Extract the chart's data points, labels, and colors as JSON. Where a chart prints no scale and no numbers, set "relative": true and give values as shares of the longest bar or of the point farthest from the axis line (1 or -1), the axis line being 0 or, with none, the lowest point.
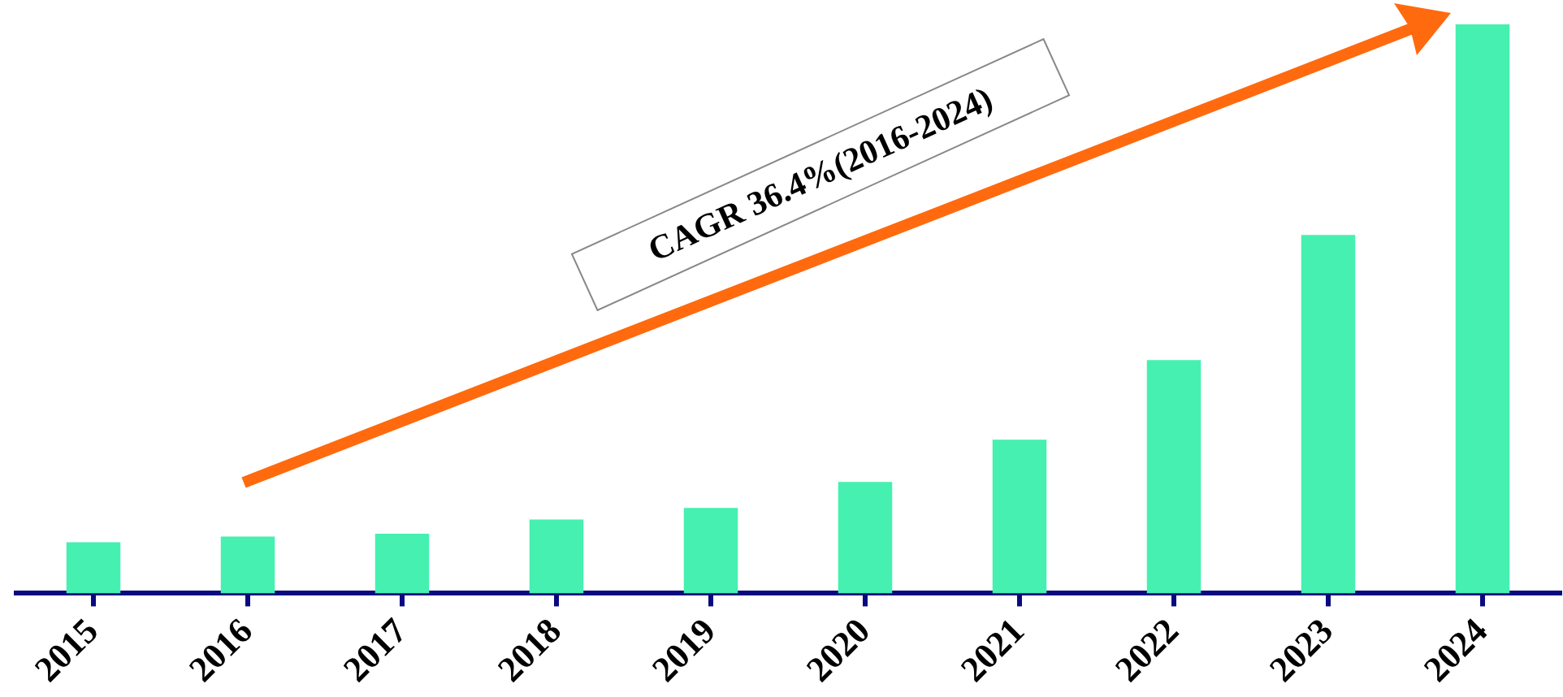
{
  "chart_data": {
    "type": "bar",
    "relative": true,
    "categories": [
      "2015",
      "2016",
      "2017",
      "2018",
      "2019",
      "2020",
      "2021",
      "2022",
      "2023",
      "2024"
    ],
    "values": [
      0.09,
      0.1,
      0.105,
      0.13,
      0.15,
      0.196,
      0.27,
      0.41,
      0.63,
      1
    ],
    "color": "#45f0b0",
    "grid": false,
    "legend": false,
    "annotations": [
      "CAGR 36.4%(2016-2024)"
    ]
  }
}
